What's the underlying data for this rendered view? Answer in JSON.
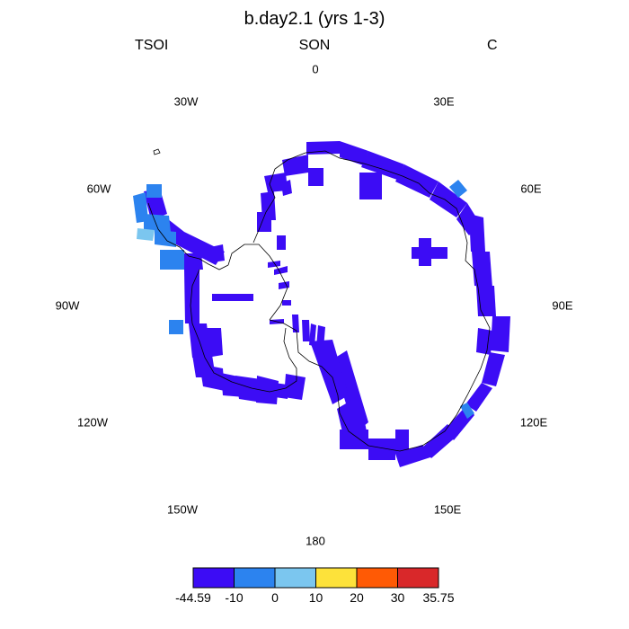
{
  "title": "b.day2.1 (yrs 1-3)",
  "subtitle": {
    "left": "TSOI",
    "center": "SON",
    "right": "C"
  },
  "longitude_labels": [
    "0",
    "30E",
    "60E",
    "90E",
    "120E",
    "150E",
    "180",
    "150W",
    "120W",
    "90W",
    "60W",
    "30W"
  ],
  "colorbar": {
    "labels": [
      "-44.59",
      "-10",
      "0",
      "10",
      "20",
      "30",
      "35.75"
    ],
    "colors": [
      "#3c0cf5",
      "#2c83ef",
      "#7bc6ef",
      "#fde23a",
      "#ff5a05",
      "#d9282a"
    ]
  },
  "colors": {
    "dominant": "#3c0cf5",
    "coastline": "#000000"
  }
}
